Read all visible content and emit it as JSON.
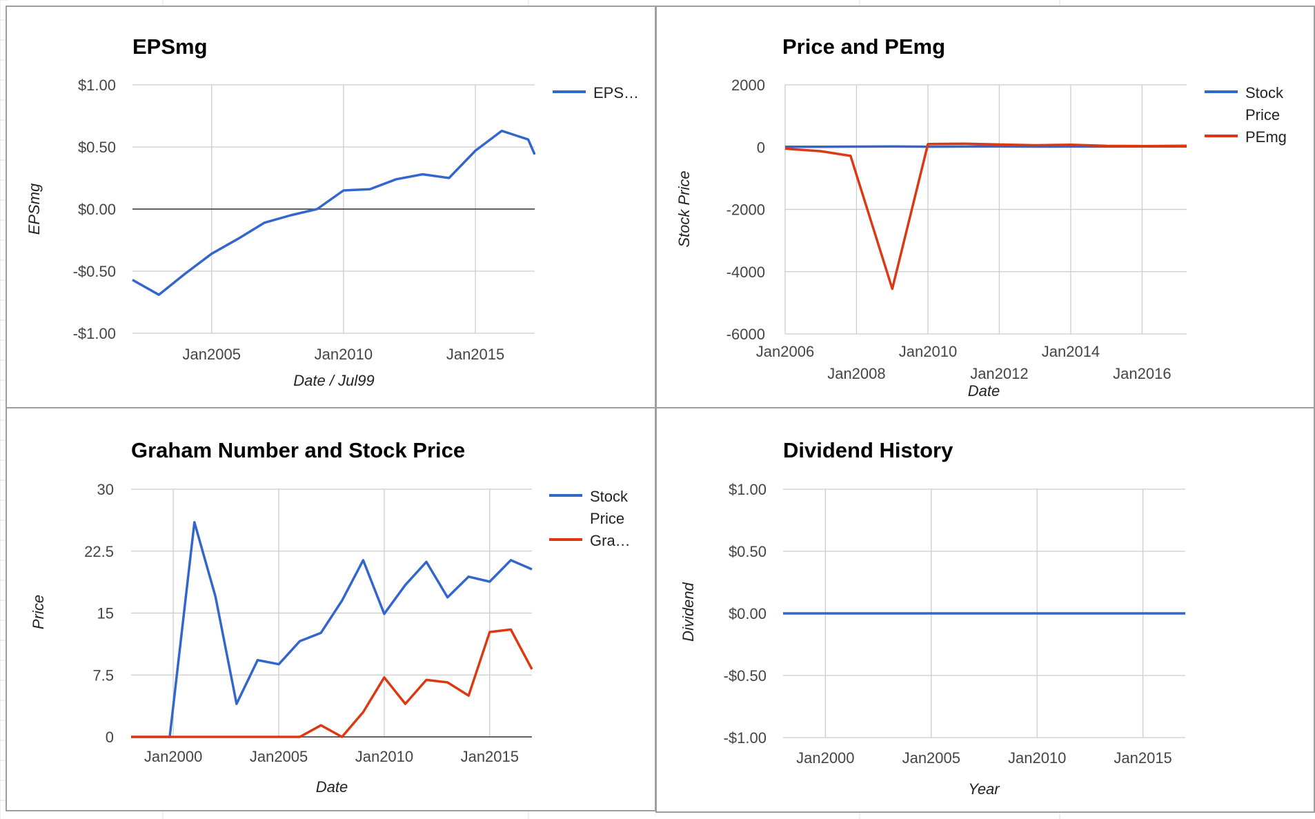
{
  "colors": {
    "series_blue": "#3366cc",
    "series_red": "#dc3912",
    "gridline": "#cccccc",
    "baseline": "#333333",
    "panel_border": "#9e9e9e",
    "sheet_gridline": "#e2e2e2"
  },
  "chart_data": [
    {
      "id": "epsmg",
      "type": "line",
      "title": "EPSmg",
      "xlabel": "Date / Jul99",
      "ylabel": "EPSmg",
      "x_tick_labels": [
        "Jan2005",
        "Jan2010",
        "Jan2015"
      ],
      "y_tick_labels": [
        "$1.00",
        "$0.50",
        "$0.00",
        "-$0.50",
        "-$1.00"
      ],
      "ylim": [
        -1.0,
        1.0
      ],
      "xlim": [
        "2002-01-01",
        "2017-04-01"
      ],
      "grid": true,
      "legend": "right",
      "legend_labels": [
        "EPS…"
      ],
      "series": [
        {
          "name": "EPSmg",
          "color": "#3366cc",
          "points": [
            [
              "2002-01-01",
              -0.57
            ],
            [
              "2003-01-01",
              -0.69
            ],
            [
              "2004-01-01",
              -0.52
            ],
            [
              "2005-01-01",
              -0.36
            ],
            [
              "2006-01-01",
              -0.24
            ],
            [
              "2007-01-01",
              -0.11
            ],
            [
              "2008-01-01",
              -0.05
            ],
            [
              "2009-01-01",
              0.0
            ],
            [
              "2010-01-01",
              0.15
            ],
            [
              "2011-01-01",
              0.16
            ],
            [
              "2012-01-01",
              0.24
            ],
            [
              "2013-01-01",
              0.28
            ],
            [
              "2014-01-01",
              0.25
            ],
            [
              "2015-01-01",
              0.47
            ],
            [
              "2016-01-01",
              0.63
            ],
            [
              "2017-01-01",
              0.56
            ],
            [
              "2017-04-01",
              0.44
            ]
          ]
        }
      ]
    },
    {
      "id": "price-pemg",
      "type": "line",
      "title": "Price and PEmg",
      "xlabel": "Date",
      "ylabel": "Stock Price",
      "x_tick_labels": [
        "Jan2006",
        "Jan2008",
        "Jan2010",
        "Jan2012",
        "Jan2014",
        "Jan2016"
      ],
      "y_tick_labels": [
        "2000",
        "0",
        "-2000",
        "-4000",
        "-6000"
      ],
      "ylim": [
        -6000,
        2000
      ],
      "xlim": [
        "2006-01-01",
        "2017-04-01"
      ],
      "grid": true,
      "legend": "right",
      "legend_labels": [
        "Stock",
        "Price",
        "PEmg"
      ],
      "series": [
        {
          "name": "Stock Price",
          "color": "#3366cc",
          "points": [
            [
              "2006-01-01",
              12
            ],
            [
              "2007-01-01",
              13
            ],
            [
              "2008-01-01",
              16
            ],
            [
              "2009-01-01",
              21
            ],
            [
              "2010-01-01",
              15
            ],
            [
              "2011-01-01",
              18
            ],
            [
              "2012-01-01",
              21
            ],
            [
              "2013-01-01",
              17
            ],
            [
              "2014-01-01",
              19
            ],
            [
              "2015-01-01",
              19
            ],
            [
              "2016-01-01",
              21
            ],
            [
              "2017-04-01",
              20
            ]
          ]
        },
        {
          "name": "PEmg",
          "color": "#dc3912",
          "points": [
            [
              "2006-01-01",
              -50
            ],
            [
              "2007-01-01",
              -130
            ],
            [
              "2007-11-01",
              -280
            ],
            [
              "2009-01-01",
              -4550
            ],
            [
              "2010-01-01",
              100
            ],
            [
              "2011-01-01",
              110
            ],
            [
              "2012-01-01",
              85
            ],
            [
              "2013-01-01",
              60
            ],
            [
              "2014-01-01",
              76
            ],
            [
              "2015-01-01",
              40
            ],
            [
              "2016-01-01",
              34
            ],
            [
              "2017-04-01",
              45
            ]
          ]
        }
      ]
    },
    {
      "id": "graham",
      "type": "line",
      "title": "Graham Number and Stock Price",
      "xlabel": "Date",
      "ylabel": "Price",
      "x_tick_labels": [
        "Jan2000",
        "Jan2005",
        "Jan2010",
        "Jan2015"
      ],
      "y_tick_labels": [
        "30",
        "22.5",
        "15",
        "7.5",
        "0"
      ],
      "ylim": [
        0,
        30
      ],
      "xlim": [
        "1998-01-01",
        "2017-01-01"
      ],
      "grid": true,
      "legend": "right",
      "legend_labels": [
        "Stock",
        "Price",
        "Gra…"
      ],
      "series": [
        {
          "name": "Stock Price",
          "color": "#3366cc",
          "points": [
            [
              "1998-01-01",
              0
            ],
            [
              "1999-01-01",
              0
            ],
            [
              "1999-11-01",
              0
            ],
            [
              "2001-01-01",
              26
            ],
            [
              "2002-01-01",
              17
            ],
            [
              "2003-01-01",
              4
            ],
            [
              "2004-01-01",
              9.3
            ],
            [
              "2005-01-01",
              8.8
            ],
            [
              "2006-01-01",
              11.6
            ],
            [
              "2007-01-01",
              12.6
            ],
            [
              "2008-01-01",
              16.5
            ],
            [
              "2009-01-01",
              21.4
            ],
            [
              "2010-01-01",
              14.9
            ],
            [
              "2011-01-01",
              18.4
            ],
            [
              "2012-01-01",
              21.2
            ],
            [
              "2013-01-01",
              16.9
            ],
            [
              "2014-01-01",
              19.4
            ],
            [
              "2015-01-01",
              18.8
            ],
            [
              "2016-01-01",
              21.4
            ],
            [
              "2017-01-01",
              20.3
            ]
          ]
        },
        {
          "name": "Graham Number",
          "color": "#dc3912",
          "points": [
            [
              "1998-01-01",
              0
            ],
            [
              "2000-01-01",
              0
            ],
            [
              "2002-01-01",
              0
            ],
            [
              "2004-01-01",
              0
            ],
            [
              "2006-01-01",
              0
            ],
            [
              "2007-01-01",
              1.4
            ],
            [
              "2008-01-01",
              0
            ],
            [
              "2009-01-01",
              3
            ],
            [
              "2010-01-01",
              7.2
            ],
            [
              "2011-01-01",
              4
            ],
            [
              "2012-01-01",
              6.9
            ],
            [
              "2013-01-01",
              6.6
            ],
            [
              "2014-01-01",
              5
            ],
            [
              "2015-01-01",
              12.7
            ],
            [
              "2016-01-01",
              13
            ],
            [
              "2017-01-01",
              8.2
            ]
          ]
        }
      ]
    },
    {
      "id": "dividend",
      "type": "line",
      "title": "Dividend History",
      "xlabel": "Year",
      "ylabel": "Dividend",
      "x_tick_labels": [
        "Jan2000",
        "Jan2005",
        "Jan2010",
        "Jan2015"
      ],
      "y_tick_labels": [
        "$1.00",
        "$0.50",
        "$0.00",
        "-$0.50",
        "-$1.00"
      ],
      "ylim": [
        -1.0,
        1.0
      ],
      "xlim": [
        "1998-01-01",
        "2017-01-01"
      ],
      "grid": true,
      "legend": "none",
      "legend_labels": [],
      "series": [
        {
          "name": "Dividend",
          "color": "#3366cc",
          "points": [
            [
              "1998-01-01",
              0
            ],
            [
              "2017-01-01",
              0
            ]
          ]
        }
      ]
    }
  ]
}
